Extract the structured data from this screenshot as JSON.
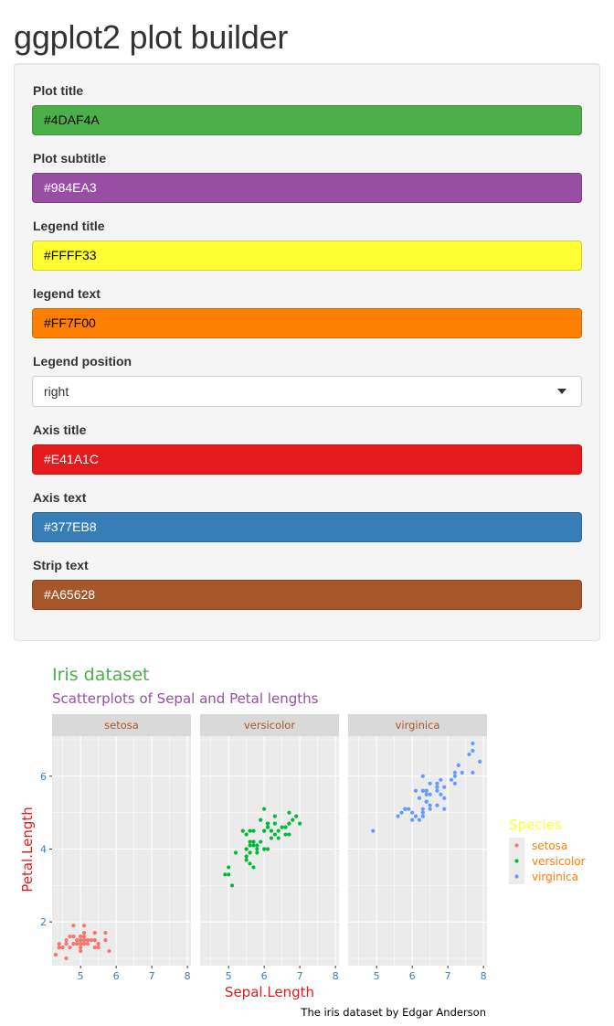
{
  "app": {
    "title": "ggplot2 plot builder"
  },
  "form": {
    "fields": [
      {
        "label": "Plot title",
        "value": "#4DAF4A",
        "bg": "#4DAF4A",
        "text_color": "#000000"
      },
      {
        "label": "Plot subtitle",
        "value": "#984EA3",
        "bg": "#984EA3",
        "text_color": "#ffffff"
      },
      {
        "label": "Legend title",
        "value": "#FFFF33",
        "bg": "#FFFF33",
        "text_color": "#000000"
      },
      {
        "label": "legend text",
        "value": "#FF7F00",
        "bg": "#FF7F00",
        "text_color": "#000000"
      },
      {
        "label": "Legend position",
        "value": "right",
        "type": "select"
      },
      {
        "label": "Axis title",
        "value": "#E41A1C",
        "bg": "#E41A1C",
        "text_color": "#ffffff"
      },
      {
        "label": "Axis text",
        "value": "#377EB8",
        "bg": "#377EB8",
        "text_color": "#ffffff"
      },
      {
        "label": "Strip text",
        "value": "#A65628",
        "bg": "#A65628",
        "text_color": "#ffffff"
      }
    ]
  },
  "chart_data": {
    "type": "scatter",
    "title": "Iris dataset",
    "subtitle": "Scatterplots of Sepal and Petal lengths",
    "caption": "The iris dataset by Edgar Anderson",
    "xlabel": "Sepal.Length",
    "ylabel": "Petal.Length",
    "xlim": [
      4.2,
      8.1
    ],
    "ylim": [
      0.8,
      7.1
    ],
    "x_ticks": [
      5,
      6,
      7,
      8
    ],
    "y_ticks": [
      2,
      4,
      6
    ],
    "legend": {
      "title": "Species",
      "position": "right"
    },
    "colors": {
      "title": "#4DAF4A",
      "subtitle": "#984EA3",
      "legend_title": "#FFFF33",
      "legend_text": "#FF7F00",
      "axis_title": "#E41A1C",
      "axis_text": "#377EB8",
      "strip_text": "#A65628"
    },
    "facets": [
      {
        "name": "setosa",
        "color": "#F8766D",
        "points": [
          [
            5.1,
            1.4
          ],
          [
            4.9,
            1.4
          ],
          [
            4.7,
            1.3
          ],
          [
            4.6,
            1.5
          ],
          [
            5.0,
            1.4
          ],
          [
            5.4,
            1.7
          ],
          [
            4.6,
            1.4
          ],
          [
            5.0,
            1.5
          ],
          [
            4.4,
            1.4
          ],
          [
            4.9,
            1.5
          ],
          [
            5.4,
            1.5
          ],
          [
            4.8,
            1.6
          ],
          [
            4.8,
            1.4
          ],
          [
            4.3,
            1.1
          ],
          [
            5.8,
            1.2
          ],
          [
            5.7,
            1.5
          ],
          [
            5.4,
            1.3
          ],
          [
            5.1,
            1.4
          ],
          [
            5.7,
            1.7
          ],
          [
            5.1,
            1.5
          ],
          [
            5.4,
            1.7
          ],
          [
            5.1,
            1.5
          ],
          [
            4.6,
            1.0
          ],
          [
            5.1,
            1.7
          ],
          [
            4.8,
            1.9
          ],
          [
            5.0,
            1.6
          ],
          [
            5.0,
            1.6
          ],
          [
            5.2,
            1.5
          ],
          [
            5.2,
            1.4
          ],
          [
            4.7,
            1.6
          ],
          [
            4.8,
            1.6
          ],
          [
            5.4,
            1.5
          ],
          [
            5.2,
            1.5
          ],
          [
            5.5,
            1.4
          ],
          [
            4.9,
            1.5
          ],
          [
            5.0,
            1.2
          ],
          [
            5.5,
            1.3
          ],
          [
            4.9,
            1.4
          ],
          [
            4.4,
            1.3
          ],
          [
            5.1,
            1.5
          ],
          [
            5.0,
            1.3
          ],
          [
            4.5,
            1.3
          ],
          [
            4.4,
            1.3
          ],
          [
            5.0,
            1.6
          ],
          [
            5.1,
            1.9
          ],
          [
            4.8,
            1.4
          ],
          [
            5.1,
            1.6
          ],
          [
            4.6,
            1.4
          ],
          [
            5.3,
            1.5
          ],
          [
            5.0,
            1.4
          ]
        ]
      },
      {
        "name": "versicolor",
        "color": "#00BA38",
        "points": [
          [
            7.0,
            4.7
          ],
          [
            6.4,
            4.5
          ],
          [
            6.9,
            4.9
          ],
          [
            5.5,
            4.0
          ],
          [
            6.5,
            4.6
          ],
          [
            5.7,
            4.5
          ],
          [
            6.3,
            4.7
          ],
          [
            4.9,
            3.3
          ],
          [
            6.6,
            4.6
          ],
          [
            5.2,
            3.9
          ],
          [
            5.0,
            3.5
          ],
          [
            5.9,
            4.2
          ],
          [
            6.0,
            4.0
          ],
          [
            6.1,
            4.7
          ],
          [
            5.6,
            3.6
          ],
          [
            6.7,
            4.4
          ],
          [
            5.6,
            4.5
          ],
          [
            5.8,
            4.1
          ],
          [
            6.2,
            4.5
          ],
          [
            5.6,
            3.9
          ],
          [
            5.9,
            4.8
          ],
          [
            6.1,
            4.0
          ],
          [
            6.3,
            4.9
          ],
          [
            6.1,
            4.7
          ],
          [
            6.4,
            4.3
          ],
          [
            6.6,
            4.4
          ],
          [
            6.8,
            4.8
          ],
          [
            6.7,
            5.0
          ],
          [
            6.0,
            4.5
          ],
          [
            5.7,
            3.5
          ],
          [
            5.5,
            3.8
          ],
          [
            5.5,
            3.7
          ],
          [
            5.8,
            3.9
          ],
          [
            6.0,
            5.1
          ],
          [
            5.4,
            4.5
          ],
          [
            6.0,
            4.5
          ],
          [
            6.7,
            4.7
          ],
          [
            6.3,
            4.4
          ],
          [
            5.6,
            4.1
          ],
          [
            5.5,
            4.0
          ],
          [
            5.5,
            4.4
          ],
          [
            6.1,
            4.6
          ],
          [
            5.8,
            4.0
          ],
          [
            5.0,
            3.3
          ],
          [
            5.6,
            4.2
          ],
          [
            5.7,
            4.2
          ],
          [
            5.7,
            4.2
          ],
          [
            6.2,
            4.3
          ],
          [
            5.1,
            3.0
          ],
          [
            5.7,
            4.1
          ]
        ]
      },
      {
        "name": "virginica",
        "color": "#619CFF",
        "points": [
          [
            6.3,
            6.0
          ],
          [
            5.8,
            5.1
          ],
          [
            7.1,
            5.9
          ],
          [
            6.3,
            5.6
          ],
          [
            6.5,
            5.8
          ],
          [
            7.6,
            6.6
          ],
          [
            4.9,
            4.5
          ],
          [
            7.3,
            6.3
          ],
          [
            6.7,
            5.8
          ],
          [
            7.2,
            6.1
          ],
          [
            6.5,
            5.1
          ],
          [
            6.4,
            5.3
          ],
          [
            6.8,
            5.5
          ],
          [
            5.7,
            5.0
          ],
          [
            5.8,
            5.1
          ],
          [
            6.4,
            5.3
          ],
          [
            6.5,
            5.5
          ],
          [
            7.7,
            6.7
          ],
          [
            7.7,
            6.9
          ],
          [
            6.0,
            5.0
          ],
          [
            6.9,
            5.7
          ],
          [
            5.6,
            4.9
          ],
          [
            7.7,
            6.7
          ],
          [
            6.3,
            4.9
          ],
          [
            6.7,
            5.7
          ],
          [
            7.2,
            6.0
          ],
          [
            6.2,
            4.8
          ],
          [
            6.1,
            4.9
          ],
          [
            6.4,
            5.6
          ],
          [
            7.2,
            5.8
          ],
          [
            7.4,
            6.1
          ],
          [
            7.9,
            6.4
          ],
          [
            6.4,
            5.6
          ],
          [
            6.3,
            5.1
          ],
          [
            6.1,
            5.6
          ],
          [
            7.7,
            6.1
          ],
          [
            6.3,
            5.6
          ],
          [
            6.4,
            5.5
          ],
          [
            6.0,
            4.8
          ],
          [
            6.9,
            5.4
          ],
          [
            6.7,
            5.6
          ],
          [
            6.9,
            5.1
          ],
          [
            5.8,
            5.1
          ],
          [
            6.8,
            5.9
          ],
          [
            6.7,
            5.7
          ],
          [
            6.7,
            5.2
          ],
          [
            6.3,
            5.0
          ],
          [
            6.5,
            5.2
          ],
          [
            6.2,
            5.4
          ],
          [
            5.9,
            5.1
          ]
        ]
      }
    ]
  }
}
